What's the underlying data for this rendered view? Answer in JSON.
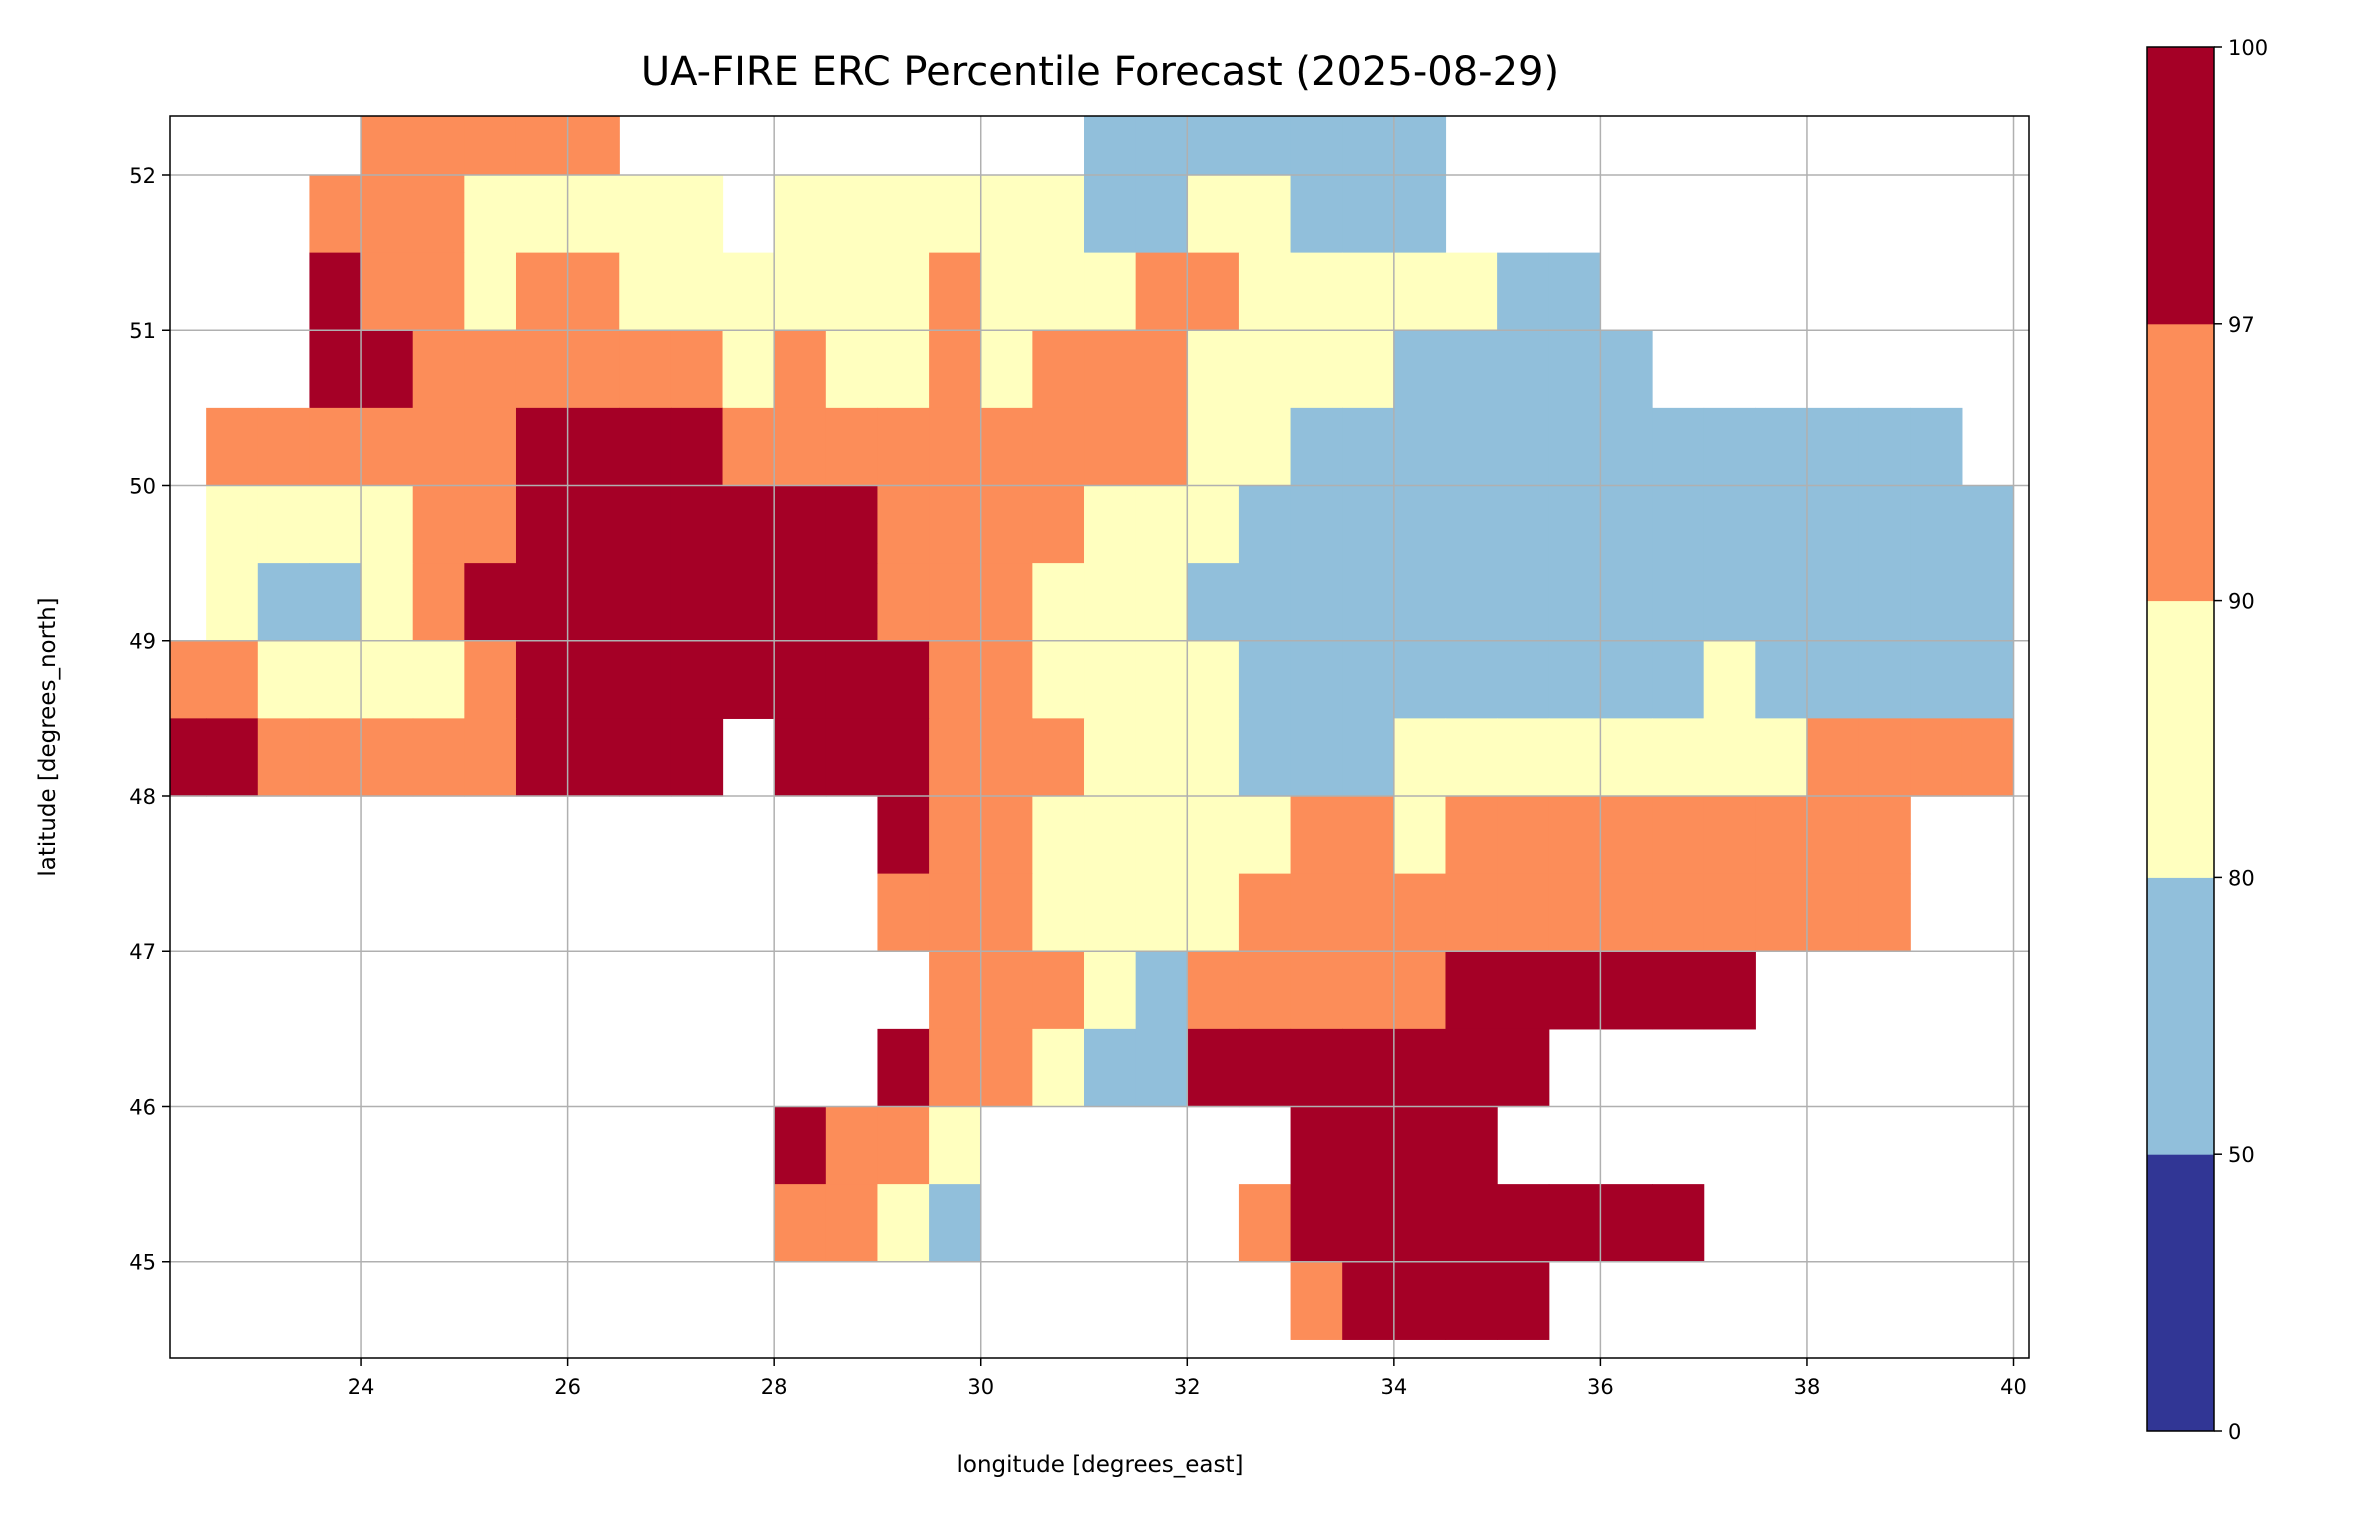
{
  "chart_data": {
    "type": "heatmap",
    "title": "UA-FIRE ERC Percentile Forecast (2025-08-29)",
    "xlabel": "longitude [degrees_east]",
    "ylabel": "latitude [degrees_north]",
    "xlim": [
      22.15,
      40.15
    ],
    "ylim": [
      44.38,
      52.38
    ],
    "xticks": [
      "24",
      "26",
      "28",
      "30",
      "32",
      "34",
      "36",
      "38",
      "40"
    ],
    "xtick_values": [
      24,
      26,
      28,
      30,
      32,
      34,
      36,
      38,
      40
    ],
    "yticks": [
      "45",
      "46",
      "47",
      "48",
      "49",
      "50",
      "51",
      "52"
    ],
    "ytick_values": [
      45,
      46,
      47,
      48,
      49,
      50,
      51,
      52
    ],
    "grid": true,
    "colorbar": {
      "boundaries": [
        "0",
        "50",
        "80",
        "90",
        "97",
        "100"
      ],
      "colors": [
        "#313695",
        "#91bfdb",
        "#ffffbf",
        "#fc8d59",
        "#a50026"
      ]
    },
    "category_colors": {
      "b": "#91bfdb",
      "y": "#ffffbf",
      "o": "#fc8d59",
      "r": "#a50026"
    },
    "category_ranges": {
      "b": "50-80",
      "y": "80-90",
      "o": "90-97",
      "r": "97-100"
    },
    "grid_origin_lon": 22.0,
    "grid_origin_lat_top": 52.5,
    "cell_deg": 0.5,
    "rows": [
      "....ooooo.........bbbbbbb...........",
      "...oooyyyyy.yyyyyybbyybbb...........",
      "...rooyooyyyyyyoyyyooyyyyybb........",
      "...rrooooooyoyyoyoooyyyybbbbb.......",
      ".oooooorrrroooooooooyybbbbbbbbbbbbb..",
      ".yyyyoorrrrrrrooooyyybbbbbbbbbbbbbbb",
      ".ybbyorrrrrrrroooyyybbbbbbbbbbbbbbbb",
      "ooyyyyorrrrrrrrooyyyybbbbbbbbbybbbbb",
      "rrooooorrrr.rrroooyyybbbyyyyyyyyoooo",
      "..............rooyyyyyooyooooooooo..",
      "..............oooyyyyooooooooooooo..",
      "...............oooybooooorrrrrr......",
      "..............rooybbrrrrrrr.........",
      "............rooy......rrrr..........",
      "............ooyb.....orrrrrrrr......",
      "......................orrrr........."
    ]
  }
}
